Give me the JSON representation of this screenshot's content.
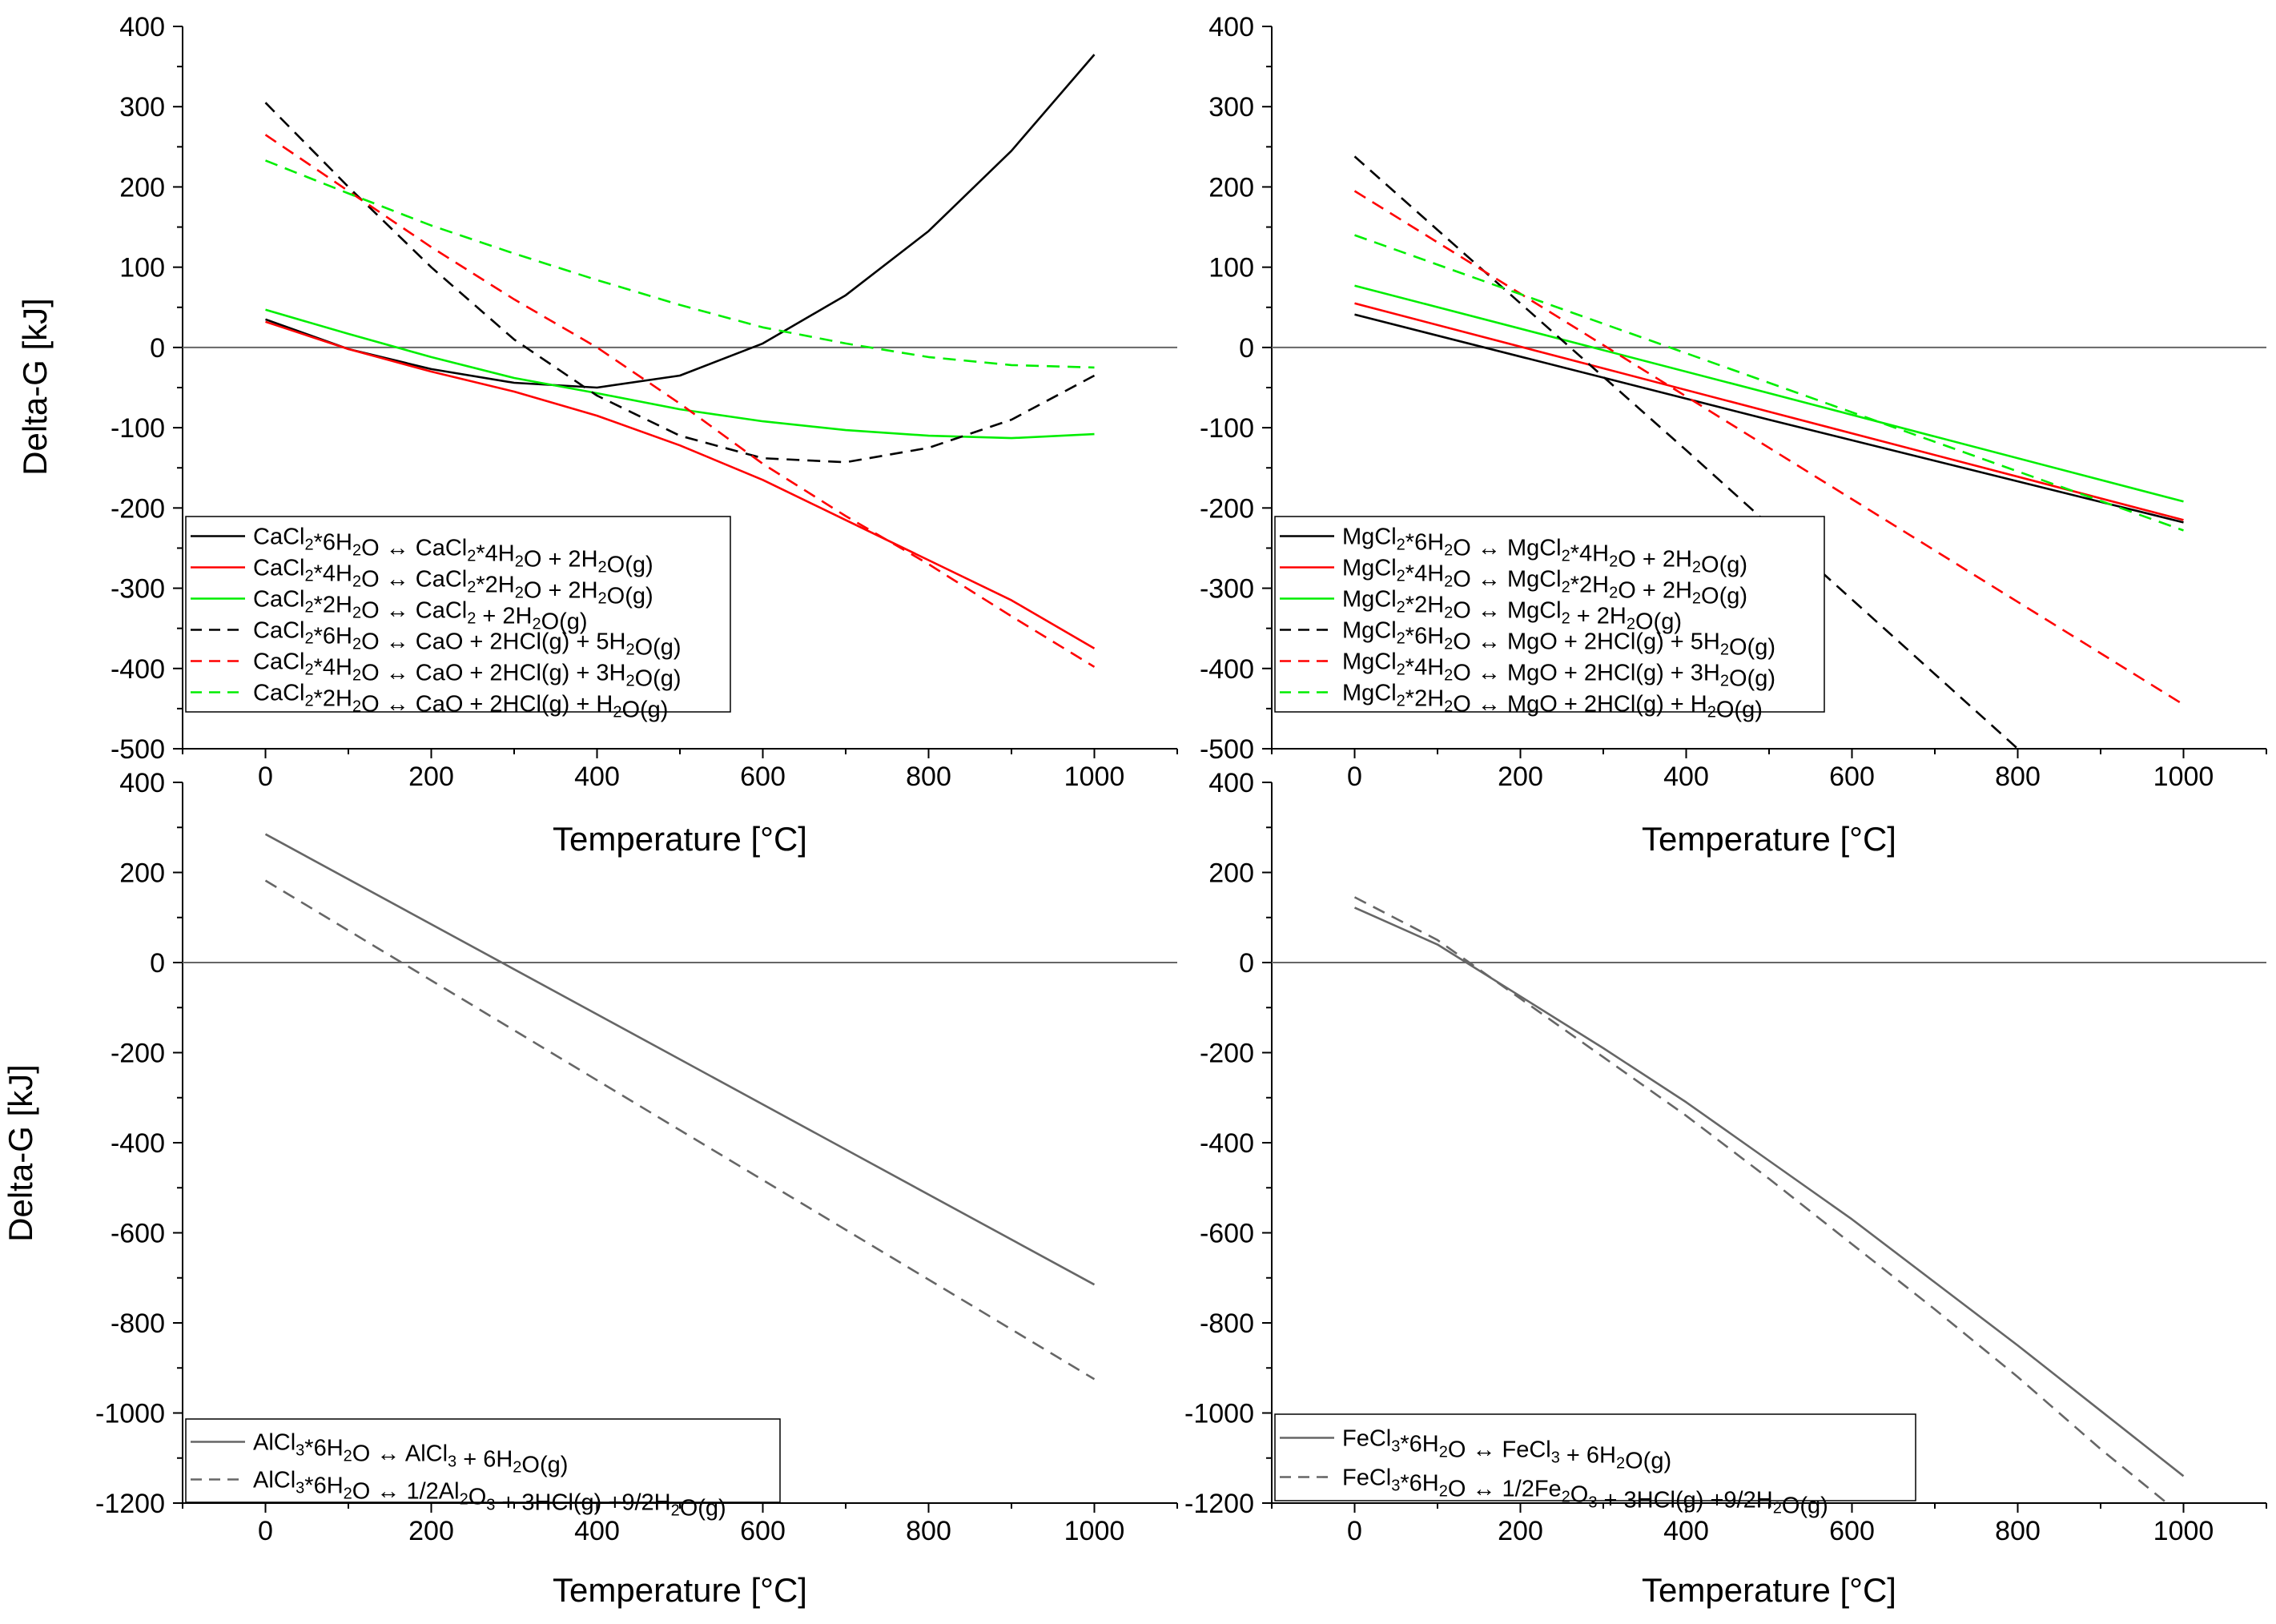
{
  "colors": {
    "black": "#000000",
    "red": "#ff0000",
    "green": "#00ee00",
    "gray": "#666666",
    "zero_line": "#666666"
  },
  "chart_data": [
    {
      "id": "cacl2",
      "type": "line",
      "xlabel": "Temperature [°C]",
      "ylabel": "Delta-G [kJ]",
      "xlim": [
        -100,
        1100
      ],
      "ylim": [
        -500,
        400
      ],
      "xticks": [
        "0",
        "200",
        "400",
        "600",
        "800",
        "1000"
      ],
      "yticks": [
        "400",
        "300",
        "200",
        "100",
        "0",
        "-100",
        "-200",
        "-300",
        "-400",
        "-500"
      ],
      "zero_line": true,
      "legend_position": "bottom-left",
      "series": [
        {
          "name": "CaCl2*6H2O ↔ CaCl2*4H2O + 2H2O(g)",
          "legend": [
            {
              "t": "CaCl"
            },
            {
              "t": "2",
              "s": 1
            },
            {
              "t": "*6H"
            },
            {
              "t": "2",
              "s": 1
            },
            {
              "t": "O ↔ CaCl"
            },
            {
              "t": "2",
              "s": 1
            },
            {
              "t": "*4H"
            },
            {
              "t": "2",
              "s": 1
            },
            {
              "t": "O + 2H"
            },
            {
              "t": "2",
              "s": 1
            },
            {
              "t": "O(g)"
            }
          ],
          "color": "black",
          "dash": false,
          "x": [
            0,
            100,
            200,
            300,
            400,
            500,
            600,
            700,
            800,
            900,
            1000
          ],
          "y": [
            35,
            -2,
            -27,
            -44,
            -50,
            -35,
            5,
            65,
            145,
            245,
            365
          ]
        },
        {
          "name": "CaCl2*4H2O ↔ CaCl2*2H2O + 2H2O(g)",
          "legend": [
            {
              "t": "CaCl"
            },
            {
              "t": "2",
              "s": 1
            },
            {
              "t": "*4H"
            },
            {
              "t": "2",
              "s": 1
            },
            {
              "t": "O ↔ CaCl"
            },
            {
              "t": "2",
              "s": 1
            },
            {
              "t": "*2H"
            },
            {
              "t": "2",
              "s": 1
            },
            {
              "t": "O + 2H"
            },
            {
              "t": "2",
              "s": 1
            },
            {
              "t": "O(g)"
            }
          ],
          "color": "red",
          "dash": false,
          "x": [
            0,
            100,
            200,
            300,
            400,
            500,
            600,
            700,
            800,
            900,
            1000
          ],
          "y": [
            32,
            -2,
            -30,
            -55,
            -85,
            -122,
            -165,
            -215,
            -265,
            -315,
            -375
          ]
        },
        {
          "name": "CaCl2*2H2O ↔ CaCl2 + 2H2O(g)",
          "legend": [
            {
              "t": "CaCl"
            },
            {
              "t": "2",
              "s": 1
            },
            {
              "t": "*2H"
            },
            {
              "t": "2",
              "s": 1
            },
            {
              "t": "O ↔ CaCl"
            },
            {
              "t": "2",
              "s": 1
            },
            {
              "t": " + 2H"
            },
            {
              "t": "2",
              "s": 1
            },
            {
              "t": "O(g)"
            }
          ],
          "color": "green",
          "dash": false,
          "x": [
            0,
            100,
            200,
            300,
            400,
            500,
            600,
            700,
            800,
            900,
            1000
          ],
          "y": [
            47,
            17,
            -12,
            -38,
            -57,
            -77,
            -92,
            -103,
            -110,
            -113,
            -108
          ]
        },
        {
          "name": "CaCl2*6H2O ↔ CaO + 2HCl(g) + 5H2O(g)",
          "legend": [
            {
              "t": "CaCl"
            },
            {
              "t": "2",
              "s": 1
            },
            {
              "t": "*6H"
            },
            {
              "t": "2",
              "s": 1
            },
            {
              "t": "O ↔ CaO + 2HCl(g) + 5H"
            },
            {
              "t": "2",
              "s": 1
            },
            {
              "t": "O(g)"
            }
          ],
          "color": "black",
          "dash": true,
          "x": [
            0,
            100,
            200,
            300,
            400,
            500,
            600,
            700,
            800,
            900,
            1000
          ],
          "y": [
            305,
            200,
            100,
            10,
            -60,
            -110,
            -138,
            -143,
            -125,
            -90,
            -35
          ]
        },
        {
          "name": "CaCl2*4H2O ↔ CaO + 2HCl(g) + 3H2O(g)",
          "legend": [
            {
              "t": "CaCl"
            },
            {
              "t": "2",
              "s": 1
            },
            {
              "t": "*4H"
            },
            {
              "t": "2",
              "s": 1
            },
            {
              "t": "O ↔ CaO + 2HCl(g) + 3H"
            },
            {
              "t": "2",
              "s": 1
            },
            {
              "t": "O(g)"
            }
          ],
          "color": "red",
          "dash": true,
          "x": [
            0,
            100,
            200,
            300,
            400,
            500,
            600,
            700,
            800,
            900,
            1000
          ],
          "y": [
            265,
            195,
            125,
            60,
            0,
            -70,
            -145,
            -210,
            -270,
            -335,
            -398
          ]
        },
        {
          "name": "CaCl2*2H2O ↔ CaO + 2HCl(g) + H2O(g)",
          "legend": [
            {
              "t": "CaCl"
            },
            {
              "t": "2",
              "s": 1
            },
            {
              "t": "*2H"
            },
            {
              "t": "2",
              "s": 1
            },
            {
              "t": "O ↔ CaO + 2HCl(g) + H"
            },
            {
              "t": "2",
              "s": 1
            },
            {
              "t": "O(g)"
            }
          ],
          "color": "green",
          "dash": true,
          "x": [
            0,
            100,
            200,
            300,
            400,
            500,
            600,
            700,
            800,
            900,
            1000
          ],
          "y": [
            233,
            192,
            152,
            117,
            84,
            53,
            25,
            5,
            -12,
            -22,
            -25
          ]
        }
      ]
    },
    {
      "id": "mgcl2",
      "type": "line",
      "xlabel": "Temperature [°C]",
      "ylabel": "",
      "xlim": [
        -100,
        1100
      ],
      "ylim": [
        -500,
        400
      ],
      "xticks": [
        "0",
        "200",
        "400",
        "600",
        "800",
        "1000"
      ],
      "yticks": [
        "400",
        "300",
        "200",
        "100",
        "0",
        "-100",
        "-200",
        "-300",
        "-400",
        "-500"
      ],
      "zero_line": true,
      "legend_position": "bottom-left",
      "series": [
        {
          "name": "MgCl2*6H2O ↔ MgCl2*4H2O + 2H2O(g)",
          "legend": [
            {
              "t": "MgCl"
            },
            {
              "t": "2",
              "s": 1
            },
            {
              "t": "*6H"
            },
            {
              "t": "2",
              "s": 1
            },
            {
              "t": "O ↔ MgCl"
            },
            {
              "t": "2",
              "s": 1
            },
            {
              "t": "*4H"
            },
            {
              "t": "2",
              "s": 1
            },
            {
              "t": "O + 2H"
            },
            {
              "t": "2",
              "s": 1
            },
            {
              "t": "O(g)"
            }
          ],
          "color": "black",
          "dash": false,
          "x": [
            0,
            500,
            1000
          ],
          "y": [
            41,
            -90,
            -218
          ]
        },
        {
          "name": "MgCl2*4H2O ↔ MgCl2*2H2O + 2H2O(g)",
          "legend": [
            {
              "t": "MgCl"
            },
            {
              "t": "2",
              "s": 1
            },
            {
              "t": "*4H"
            },
            {
              "t": "2",
              "s": 1
            },
            {
              "t": "O ↔ MgCl"
            },
            {
              "t": "2",
              "s": 1
            },
            {
              "t": "*2H"
            },
            {
              "t": "2",
              "s": 1
            },
            {
              "t": "O + 2H"
            },
            {
              "t": "2",
              "s": 1
            },
            {
              "t": "O(g)"
            }
          ],
          "color": "red",
          "dash": false,
          "x": [
            0,
            500,
            1000
          ],
          "y": [
            55,
            -80,
            -215
          ]
        },
        {
          "name": "MgCl2*2H2O ↔ MgCl2 + 2H2O(g)",
          "legend": [
            {
              "t": "MgCl"
            },
            {
              "t": "2",
              "s": 1
            },
            {
              "t": "*2H"
            },
            {
              "t": "2",
              "s": 1
            },
            {
              "t": "O ↔ MgCl"
            },
            {
              "t": "2",
              "s": 1
            },
            {
              "t": " + 2H"
            },
            {
              "t": "2",
              "s": 1
            },
            {
              "t": "O(g)"
            }
          ],
          "color": "green",
          "dash": false,
          "x": [
            0,
            500,
            1000
          ],
          "y": [
            77,
            -57,
            -192
          ]
        },
        {
          "name": "MgCl2*6H2O ↔ MgO + 2HCl(g) + 5H2O(g)",
          "legend": [
            {
              "t": "MgCl"
            },
            {
              "t": "2",
              "s": 1
            },
            {
              "t": "*6H"
            },
            {
              "t": "2",
              "s": 1
            },
            {
              "t": "O ↔ MgO + 2HCl(g) + 5H"
            },
            {
              "t": "2",
              "s": 1
            },
            {
              "t": "O(g)"
            }
          ],
          "color": "black",
          "dash": true,
          "x": [
            0,
            400,
            800
          ],
          "y": [
            238,
            -128,
            -500
          ]
        },
        {
          "name": "MgCl2*4H2O ↔ MgO + 2HCl(g) + 3H2O(g)",
          "legend": [
            {
              "t": "MgCl"
            },
            {
              "t": "2",
              "s": 1
            },
            {
              "t": "*4H"
            },
            {
              "t": "2",
              "s": 1
            },
            {
              "t": "O ↔ MgO + 2HCl(g) + 3H"
            },
            {
              "t": "2",
              "s": 1
            },
            {
              "t": "O(g)"
            }
          ],
          "color": "red",
          "dash": true,
          "x": [
            0,
            500,
            1000
          ],
          "y": [
            195,
            -125,
            -445
          ]
        },
        {
          "name": "MgCl2*2H2O ↔ MgO + 2HCl(g) + H2O(g)",
          "legend": [
            {
              "t": "MgCl"
            },
            {
              "t": "2",
              "s": 1
            },
            {
              "t": "*2H"
            },
            {
              "t": "2",
              "s": 1
            },
            {
              "t": "O ↔ MgO + 2HCl(g) + H"
            },
            {
              "t": "2",
              "s": 1
            },
            {
              "t": "O(g)"
            }
          ],
          "color": "green",
          "dash": true,
          "x": [
            0,
            500,
            1000
          ],
          "y": [
            140,
            -44,
            -228
          ]
        }
      ]
    },
    {
      "id": "alcl3",
      "type": "line",
      "xlabel": "Temperature [°C]",
      "ylabel": "Delta-G [kJ]",
      "xlim": [
        -100,
        1100
      ],
      "ylim": [
        -1200,
        400
      ],
      "xticks": [
        "0",
        "200",
        "400",
        "600",
        "800",
        "1000"
      ],
      "yticks": [
        "400",
        "200",
        "0",
        "-200",
        "-400",
        "-600",
        "-800",
        "-1000",
        "-1200"
      ],
      "zero_line": true,
      "legend_position": "bottom-left",
      "series": [
        {
          "name": "AlCl3*6H2O ↔ AlCl3 + 6H2O(g)",
          "legend": [
            {
              "t": "AlCl"
            },
            {
              "t": "3",
              "s": 1
            },
            {
              "t": "*6H"
            },
            {
              "t": "2",
              "s": 1
            },
            {
              "t": "O ↔ AlCl"
            },
            {
              "t": "3",
              "s": 1
            },
            {
              "t": " + 6H"
            },
            {
              "t": "2",
              "s": 1
            },
            {
              "t": "O(g)"
            }
          ],
          "color": "gray",
          "dash": false,
          "x": [
            0,
            500,
            1000
          ],
          "y": [
            285,
            -215,
            -715
          ]
        },
        {
          "name": "AlCl3*6H2O ↔ 1/2Al2O3 + 3HCl(g) +9/2H2O(g)",
          "legend": [
            {
              "t": "AlCl"
            },
            {
              "t": "3",
              "s": 1
            },
            {
              "t": "*6H"
            },
            {
              "t": "2",
              "s": 1
            },
            {
              "t": "O ↔ 1/2Al"
            },
            {
              "t": "2",
              "s": 1
            },
            {
              "t": "O"
            },
            {
              "t": "3",
              "s": 1
            },
            {
              "t": " + 3HCl(g) +9/2H"
            },
            {
              "t": "2",
              "s": 1
            },
            {
              "t": "O(g)"
            }
          ],
          "color": "gray",
          "dash": true,
          "x": [
            0,
            500,
            1000
          ],
          "y": [
            182,
            -372,
            -925
          ]
        }
      ]
    },
    {
      "id": "fecl3",
      "type": "line",
      "xlabel": "Temperature [°C]",
      "ylabel": "",
      "xlim": [
        -100,
        1100
      ],
      "ylim": [
        -1200,
        400
      ],
      "xticks": [
        "0",
        "200",
        "400",
        "600",
        "800",
        "1000"
      ],
      "yticks": [
        "400",
        "200",
        "0",
        "-200",
        "-400",
        "-600",
        "-800",
        "-1000",
        "-1200"
      ],
      "zero_line": true,
      "legend_position": "bottom-left",
      "series": [
        {
          "name": "FeCl3*6H2O ↔ FeCl3 + 6H2O(g)",
          "legend": [
            {
              "t": "FeCl"
            },
            {
              "t": "3",
              "s": 1
            },
            {
              "t": "*6H"
            },
            {
              "t": "2",
              "s": 1
            },
            {
              "t": "O ↔ FeCl"
            },
            {
              "t": "3",
              "s": 1
            },
            {
              "t": " + 6H"
            },
            {
              "t": "2",
              "s": 1
            },
            {
              "t": "O(g)"
            }
          ],
          "color": "gray",
          "dash": false,
          "x": [
            0,
            100,
            200,
            300,
            400,
            500,
            600,
            700,
            800,
            900,
            1000
          ],
          "y": [
            122,
            40,
            -75,
            -190,
            -310,
            -440,
            -570,
            -710,
            -850,
            -995,
            -1140
          ]
        },
        {
          "name": "FeCl3*6H2O ↔ 1/2Fe2O3 + 3HCl(g) +9/2H2O(g)",
          "legend": [
            {
              "t": "FeCl"
            },
            {
              "t": "3",
              "s": 1
            },
            {
              "t": "*6H"
            },
            {
              "t": "2",
              "s": 1
            },
            {
              "t": "O ↔ 1/2Fe"
            },
            {
              "t": "2",
              "s": 1
            },
            {
              "t": "O"
            },
            {
              "t": "3",
              "s": 1
            },
            {
              "t": " + 3HCl(g) +9/2H"
            },
            {
              "t": "2",
              "s": 1
            },
            {
              "t": "O(g)"
            }
          ],
          "color": "gray",
          "dash": true,
          "x": [
            0,
            100,
            200,
            300,
            400,
            500,
            600,
            700,
            800,
            900,
            980
          ],
          "y": [
            145,
            50,
            -80,
            -210,
            -340,
            -480,
            -625,
            -770,
            -920,
            -1080,
            -1200
          ]
        }
      ]
    }
  ]
}
